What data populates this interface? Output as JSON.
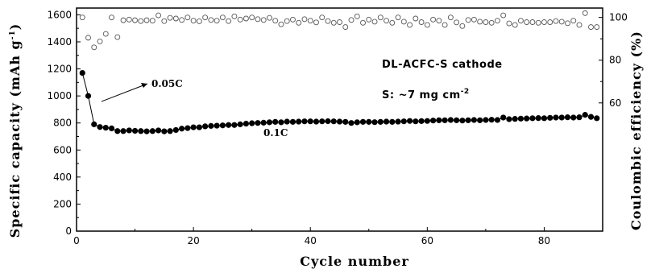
{
  "chart_data": {
    "type": "scatter",
    "xlabel": "Cycle number",
    "ylabel_left": {
      "main": "Specific capacity (mAh g",
      "sup": "-1",
      "close": ")"
    },
    "ylabel_right": "Coulombic efficiency (%)",
    "x_range": [
      0,
      90
    ],
    "x_ticks": [
      0,
      20,
      40,
      60,
      80
    ],
    "y_left_range": [
      0,
      1650
    ],
    "y_left_ticks": [
      0,
      200,
      400,
      600,
      800,
      1000,
      1200,
      1400,
      1600
    ],
    "y_right_range": [
      0,
      104.4
    ],
    "y_right_ticks": [
      60,
      80,
      100
    ],
    "grid": false,
    "annotations": {
      "title": "DL-ACFC-S cathode",
      "loading": {
        "main": "S: ~7 mg cm",
        "sup": "-2"
      },
      "rate1": "0.05C",
      "rate2": "0.1C"
    },
    "series": [
      {
        "axis": "left",
        "marker": "filled-circle",
        "x": [
          1,
          2,
          3,
          4,
          5,
          6,
          7,
          8,
          9,
          10,
          11,
          12,
          13,
          14,
          15,
          16,
          17,
          18,
          19,
          20,
          21,
          22,
          23,
          24,
          25,
          26,
          27,
          28,
          29,
          30,
          31,
          32,
          33,
          34,
          35,
          36,
          37,
          38,
          39,
          40,
          41,
          42,
          43,
          44,
          45,
          46,
          47,
          48,
          49,
          50,
          51,
          52,
          53,
          54,
          55,
          56,
          57,
          58,
          59,
          60,
          61,
          62,
          63,
          64,
          65,
          66,
          67,
          68,
          69,
          70,
          71,
          72,
          73,
          74,
          75,
          76,
          77,
          78,
          79,
          80,
          81,
          82,
          83,
          84,
          85,
          86,
          87,
          88,
          89
        ],
        "values": [
          1170,
          1000,
          790,
          770,
          765,
          760,
          740,
          740,
          745,
          742,
          740,
          738,
          740,
          745,
          738,
          740,
          748,
          758,
          762,
          768,
          768,
          775,
          778,
          780,
          782,
          785,
          785,
          790,
          795,
          798,
          800,
          802,
          805,
          808,
          805,
          810,
          808,
          810,
          812,
          812,
          810,
          812,
          813,
          812,
          810,
          808,
          800,
          805,
          808,
          808,
          806,
          808,
          810,
          808,
          810,
          812,
          815,
          812,
          814,
          815,
          818,
          820,
          820,
          822,
          820,
          818,
          820,
          822,
          820,
          822,
          824,
          822,
          840,
          828,
          830,
          832,
          833,
          835,
          836,
          835,
          838,
          840,
          840,
          842,
          840,
          842,
          860,
          845,
          835
        ]
      },
      {
        "axis": "right",
        "marker": "open-circle",
        "x": [
          1,
          2,
          3,
          4,
          5,
          6,
          7,
          8,
          9,
          10,
          11,
          12,
          13,
          14,
          15,
          16,
          17,
          18,
          19,
          20,
          21,
          22,
          23,
          24,
          25,
          26,
          27,
          28,
          29,
          30,
          31,
          32,
          33,
          34,
          35,
          36,
          37,
          38,
          39,
          40,
          41,
          42,
          43,
          44,
          45,
          46,
          47,
          48,
          49,
          50,
          51,
          52,
          53,
          54,
          55,
          56,
          57,
          58,
          59,
          60,
          61,
          62,
          63,
          64,
          65,
          66,
          67,
          68,
          69,
          70,
          71,
          72,
          73,
          74,
          75,
          76,
          77,
          78,
          79,
          80,
          81,
          82,
          83,
          84,
          85,
          86,
          87,
          88,
          89
        ],
        "values": [
          100.0,
          90.5,
          86.0,
          88.8,
          92.3,
          100.0,
          90.8,
          98.7,
          99.0,
          98.7,
          98.3,
          98.7,
          98.5,
          101.0,
          98.3,
          99.8,
          99.5,
          98.8,
          100.0,
          98.5,
          98.2,
          100.0,
          98.8,
          98.5,
          100.0,
          98.3,
          100.5,
          99.0,
          99.5,
          100.0,
          99.2,
          98.8,
          99.8,
          98.5,
          96.8,
          98.3,
          99.0,
          97.5,
          99.2,
          98.5,
          97.7,
          100.0,
          98.3,
          97.5,
          97.8,
          95.5,
          98.8,
          100.5,
          97.5,
          99.0,
          98.0,
          100.0,
          98.5,
          97.5,
          100.0,
          98.0,
          96.5,
          99.5,
          97.8,
          96.5,
          99.0,
          98.5,
          96.5,
          100.0,
          97.7,
          96.0,
          98.8,
          99.0,
          98.0,
          97.8,
          97.5,
          98.5,
          101.0,
          97.2,
          96.5,
          98.5,
          97.8,
          97.8,
          97.5,
          97.8,
          97.8,
          98.3,
          98.0,
          97.3,
          98.5,
          96.5,
          102.0,
          95.5,
          95.5
        ]
      }
    ]
  }
}
